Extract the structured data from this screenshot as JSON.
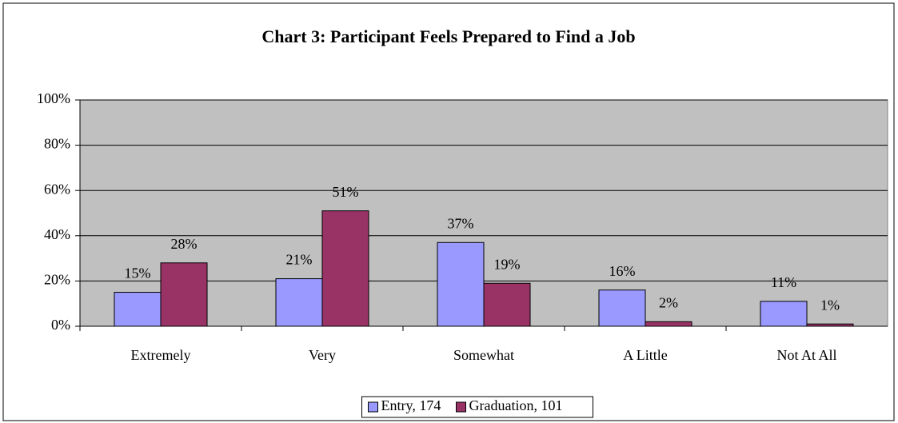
{
  "chart_data": {
    "type": "bar",
    "title": "Chart 3: Participant Feels Prepared to Find a Job",
    "categories": [
      "Extremely",
      "Very",
      "Somewhat",
      "A Little",
      "Not At All"
    ],
    "series": [
      {
        "name": "Entry, 174",
        "color": "#9999ff",
        "values": [
          15,
          21,
          37,
          16,
          11
        ],
        "value_labels": [
          "15%",
          "21%",
          "37%",
          "16%",
          "11%"
        ]
      },
      {
        "name": "Graduation, 101",
        "color": "#993366",
        "values": [
          28,
          51,
          19,
          2,
          1
        ],
        "value_labels": [
          "28%",
          "51%",
          "19%",
          "2%",
          "1%"
        ]
      }
    ],
    "ylim": [
      0,
      100
    ],
    "yticks": [
      {
        "value": 0,
        "label": "0%"
      },
      {
        "value": 20,
        "label": "20%"
      },
      {
        "value": 40,
        "label": "40%"
      },
      {
        "value": 60,
        "label": "60%"
      },
      {
        "value": 80,
        "label": "80%"
      },
      {
        "value": 100,
        "label": "100%"
      }
    ],
    "grid": true,
    "legend": "bottom"
  }
}
